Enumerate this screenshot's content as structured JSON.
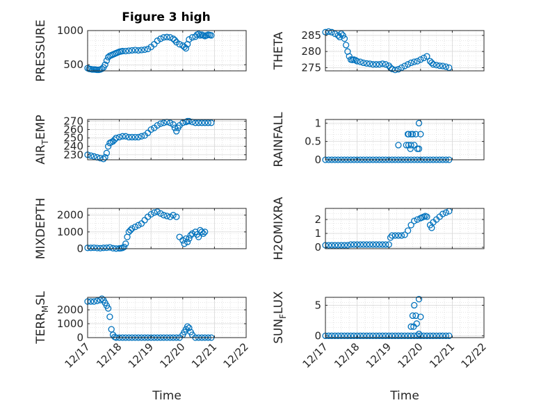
{
  "figure": {
    "title": "Figure 3 high",
    "marker_color": "#0072BD",
    "axis_color": "#262626"
  },
  "chart_data": [
    {
      "type": "scatter",
      "title": "Figure 3 high",
      "ylabel": "PRESSURE",
      "xlabel": "",
      "xlim": [
        0,
        5
      ],
      "ylim": [
        410,
        1000
      ],
      "yticks": [
        500,
        1000
      ],
      "x": [
        0.0,
        0.05,
        0.1,
        0.15,
        0.2,
        0.25,
        0.3,
        0.35,
        0.4,
        0.45,
        0.5,
        0.55,
        0.6,
        0.65,
        0.7,
        0.75,
        0.8,
        0.85,
        0.9,
        0.95,
        1.0,
        1.05,
        1.1,
        1.2,
        1.3,
        1.4,
        1.5,
        1.6,
        1.7,
        1.8,
        1.9,
        2.0,
        2.1,
        2.2,
        2.3,
        2.4,
        2.5,
        2.6,
        2.7,
        2.75,
        2.8,
        2.9,
        3.0,
        3.05,
        3.1,
        3.15,
        3.2,
        3.3,
        3.4,
        3.45,
        3.5,
        3.55,
        3.6,
        3.65,
        3.7,
        3.75,
        3.8,
        3.85,
        3.9
      ],
      "values": [
        450,
        440,
        435,
        430,
        430,
        428,
        425,
        425,
        430,
        440,
        460,
        500,
        560,
        610,
        630,
        640,
        650,
        660,
        670,
        680,
        690,
        695,
        700,
        700,
        705,
        710,
        715,
        710,
        715,
        720,
        730,
        760,
        800,
        850,
        880,
        900,
        905,
        900,
        880,
        860,
        830,
        800,
        780,
        760,
        740,
        800,
        870,
        900,
        910,
        940,
        950,
        930,
        940,
        930,
        920,
        930,
        940,
        935,
        930
      ]
    },
    {
      "type": "scatter",
      "title": "",
      "ylabel": "THETA",
      "xlabel": "",
      "xlim": [
        0,
        5
      ],
      "ylim": [
        274,
        286.5
      ],
      "yticks": [
        275,
        280,
        285
      ],
      "x": [
        0.0,
        0.1,
        0.2,
        0.3,
        0.4,
        0.45,
        0.5,
        0.55,
        0.6,
        0.65,
        0.7,
        0.75,
        0.8,
        0.85,
        0.9,
        0.95,
        1.0,
        1.1,
        1.2,
        1.3,
        1.4,
        1.5,
        1.6,
        1.7,
        1.8,
        1.9,
        2.0,
        2.05,
        2.1,
        2.2,
        2.3,
        2.4,
        2.5,
        2.6,
        2.7,
        2.8,
        2.9,
        3.0,
        3.1,
        3.2,
        3.3,
        3.35,
        3.4,
        3.5,
        3.6,
        3.7,
        3.8,
        3.9
      ],
      "values": [
        286,
        286.2,
        286,
        285.5,
        285,
        284.5,
        285.5,
        285,
        284,
        282,
        280,
        278.5,
        277.5,
        277.4,
        277.5,
        277.3,
        277,
        276.8,
        276.5,
        276.3,
        276.2,
        276,
        276,
        276,
        276.2,
        276,
        275.6,
        275,
        274.6,
        274.3,
        274.5,
        275,
        275.5,
        276,
        276.5,
        276.8,
        277,
        277.5,
        278,
        278.5,
        277,
        276.5,
        276,
        275.8,
        275.6,
        275.5,
        275.3,
        275
      ]
    },
    {
      "type": "scatter",
      "title": "",
      "ylabel": "AIR_TEMP",
      "xlabel": "",
      "xlim": [
        0,
        5
      ],
      "ylim": [
        224,
        272
      ],
      "yticks": [
        230,
        240,
        250,
        260,
        270
      ],
      "x": [
        0.0,
        0.1,
        0.2,
        0.3,
        0.4,
        0.5,
        0.55,
        0.6,
        0.65,
        0.7,
        0.75,
        0.8,
        0.85,
        0.9,
        1.0,
        1.1,
        1.2,
        1.3,
        1.4,
        1.5,
        1.6,
        1.7,
        1.8,
        1.9,
        2.0,
        2.1,
        2.2,
        2.3,
        2.4,
        2.5,
        2.6,
        2.7,
        2.75,
        2.8,
        2.85,
        2.9,
        3.0,
        3.1,
        3.15,
        3.2,
        3.3,
        3.4,
        3.5,
        3.6,
        3.7,
        3.8,
        3.9
      ],
      "values": [
        230,
        229,
        228,
        227,
        226,
        225,
        227,
        232,
        240,
        244,
        245,
        246,
        248,
        250,
        251,
        252,
        252,
        251,
        251,
        251,
        251,
        252,
        253,
        256,
        260,
        262,
        265,
        267,
        268,
        269,
        268,
        266,
        262,
        258,
        262,
        265,
        268,
        269,
        270,
        270,
        269,
        268,
        268,
        268,
        268,
        268,
        268
      ]
    },
    {
      "type": "scatter",
      "title": "",
      "ylabel": "RAINFALL",
      "xlabel": "",
      "xlim": [
        0,
        5
      ],
      "ylim": [
        0,
        1.1
      ],
      "yticks": [
        0,
        0.5,
        1
      ],
      "x": [
        0.0,
        0.1,
        0.2,
        0.3,
        0.4,
        0.5,
        0.6,
        0.7,
        0.8,
        0.9,
        1.0,
        1.1,
        1.2,
        1.3,
        1.4,
        1.5,
        1.6,
        1.7,
        1.8,
        1.9,
        2.0,
        2.1,
        2.2,
        2.3,
        2.4,
        2.5,
        2.6,
        2.7,
        2.8,
        2.9,
        3.0,
        3.1,
        3.2,
        3.3,
        3.4,
        3.5,
        3.6,
        3.7,
        3.8,
        3.9,
        2.3,
        2.55,
        2.62,
        2.6,
        2.7,
        2.75,
        2.62,
        2.68,
        2.85,
        2.9,
        2.95,
        3.0,
        2.95,
        2.7,
        2.8
      ],
      "values": [
        0,
        0,
        0,
        0,
        0,
        0,
        0,
        0,
        0,
        0,
        0,
        0,
        0,
        0,
        0,
        0,
        0,
        0,
        0,
        0,
        0,
        0,
        0,
        0,
        0,
        0,
        0,
        0,
        0,
        0,
        0,
        0,
        0,
        0,
        0,
        0,
        0,
        0,
        0,
        0,
        0.4,
        0.4,
        0.4,
        0.7,
        0.7,
        0.7,
        0.7,
        0.3,
        0.7,
        0.3,
        0.3,
        0.7,
        1.0,
        0.4,
        0.4
      ]
    },
    {
      "type": "scatter",
      "title": "",
      "ylabel": "MIXDEPTH",
      "xlabel": "",
      "xlim": [
        0,
        5
      ],
      "ylim": [
        0,
        2400
      ],
      "yticks": [
        0,
        1000,
        2000
      ],
      "x": [
        0.0,
        0.1,
        0.2,
        0.3,
        0.4,
        0.5,
        0.6,
        0.7,
        0.8,
        0.9,
        1.0,
        1.05,
        1.1,
        1.15,
        1.2,
        1.25,
        1.3,
        1.35,
        1.4,
        1.5,
        1.6,
        1.7,
        1.8,
        1.9,
        2.0,
        2.1,
        2.2,
        2.3,
        2.4,
        2.5,
        2.6,
        2.7,
        2.8,
        2.9,
        3.0,
        3.05,
        3.1,
        3.15,
        3.2,
        3.25,
        3.3,
        3.4,
        3.45,
        3.5,
        3.55,
        3.6,
        3.65,
        3.7
      ],
      "values": [
        50,
        50,
        60,
        40,
        30,
        50,
        60,
        80,
        30,
        10,
        20,
        30,
        50,
        100,
        300,
        700,
        1000,
        1100,
        1200,
        1300,
        1400,
        1500,
        1700,
        1900,
        2050,
        2150,
        2200,
        2100,
        2000,
        1950,
        1900,
        2000,
        1900,
        700,
        500,
        300,
        600,
        400,
        600,
        800,
        900,
        1000,
        850,
        700,
        1100,
        1000,
        900,
        1000
      ]
    },
    {
      "type": "scatter",
      "title": "",
      "ylabel": "H2OMIXRA",
      "xlabel": "",
      "xlim": [
        0,
        5
      ],
      "ylim": [
        -0.1,
        2.8
      ],
      "yticks": [
        0,
        1,
        2
      ],
      "x": [
        0.0,
        0.1,
        0.2,
        0.3,
        0.4,
        0.5,
        0.6,
        0.7,
        0.8,
        0.9,
        1.0,
        1.1,
        1.2,
        1.3,
        1.4,
        1.5,
        1.6,
        1.7,
        1.8,
        1.9,
        2.0,
        2.05,
        2.1,
        2.2,
        2.3,
        2.4,
        2.5,
        2.6,
        2.7,
        2.8,
        2.9,
        3.0,
        3.05,
        3.1,
        3.15,
        3.2,
        3.3,
        3.35,
        3.4,
        3.5,
        3.6,
        3.7,
        3.8,
        3.9
      ],
      "values": [
        0.15,
        0.15,
        0.15,
        0.15,
        0.15,
        0.15,
        0.15,
        0.15,
        0.2,
        0.2,
        0.2,
        0.2,
        0.2,
        0.2,
        0.2,
        0.2,
        0.2,
        0.2,
        0.2,
        0.2,
        0.2,
        0.7,
        0.85,
        0.85,
        0.85,
        0.85,
        0.9,
        1.2,
        1.6,
        1.9,
        2.0,
        2.1,
        2.15,
        2.2,
        2.25,
        2.2,
        1.6,
        1.4,
        1.8,
        2.0,
        2.2,
        2.4,
        2.5,
        2.6
      ]
    },
    {
      "type": "scatter",
      "title": "",
      "ylabel": "TERR_MSL",
      "xlabel": "",
      "xlim": [
        0,
        5
      ],
      "ylim": [
        0,
        2900
      ],
      "yticks": [
        0,
        1000,
        2000
      ],
      "x": [
        0.0,
        0.1,
        0.2,
        0.3,
        0.4,
        0.45,
        0.5,
        0.55,
        0.6,
        0.65,
        0.7,
        0.75,
        0.8,
        0.85,
        0.9,
        1.0,
        1.1,
        1.2,
        1.3,
        1.4,
        1.5,
        1.6,
        1.7,
        1.8,
        1.9,
        2.0,
        2.1,
        2.2,
        2.3,
        2.4,
        2.5,
        2.6,
        2.7,
        2.8,
        2.9,
        3.0,
        3.05,
        3.1,
        3.15,
        3.2,
        3.25,
        3.3,
        3.4,
        3.5,
        3.6,
        3.7,
        3.8,
        3.9
      ],
      "values": [
        2600,
        2600,
        2600,
        2650,
        2700,
        2800,
        2700,
        2500,
        2300,
        2100,
        1500,
        600,
        200,
        50,
        0,
        0,
        0,
        0,
        0,
        0,
        0,
        0,
        0,
        0,
        0,
        0,
        0,
        0,
        0,
        0,
        0,
        0,
        0,
        0,
        0,
        200,
        400,
        600,
        800,
        700,
        400,
        200,
        0,
        0,
        0,
        0,
        0,
        0
      ]
    },
    {
      "type": "scatter",
      "title": "",
      "ylabel": "SUN_FLUX",
      "xlabel": "",
      "xlim": [
        0,
        5
      ],
      "ylim": [
        -0.3,
        6.3
      ],
      "yticks": [
        0,
        5
      ],
      "x": [
        0.0,
        0.1,
        0.2,
        0.3,
        0.4,
        0.5,
        0.6,
        0.7,
        0.8,
        0.9,
        1.0,
        1.1,
        1.2,
        1.3,
        1.4,
        1.5,
        1.6,
        1.7,
        1.8,
        1.9,
        2.0,
        2.1,
        2.2,
        2.3,
        2.4,
        2.5,
        2.6,
        2.7,
        2.8,
        2.9,
        3.0,
        3.1,
        3.2,
        3.3,
        3.4,
        3.5,
        3.6,
        3.7,
        3.8,
        3.9,
        2.7,
        2.75,
        2.8,
        2.78,
        2.85,
        2.88,
        2.95,
        3.0,
        2.95
      ],
      "values": [
        0,
        0,
        0,
        0,
        0,
        0,
        0,
        0,
        0,
        0,
        0,
        0,
        0,
        0,
        0,
        0,
        0,
        0,
        0,
        0,
        0,
        0,
        0,
        0,
        0,
        0,
        0,
        0,
        0,
        0,
        0,
        0,
        0,
        0,
        0,
        0,
        0,
        0,
        0,
        0,
        1.5,
        3.3,
        5.0,
        1.5,
        3.3,
        2.0,
        6.0,
        3.1,
        0.3
      ]
    }
  ],
  "x_tick_labels": [
    "12/17",
    "12/18",
    "12/19",
    "12/20",
    "12/21",
    "12/22"
  ],
  "x_axis_label": "Time"
}
